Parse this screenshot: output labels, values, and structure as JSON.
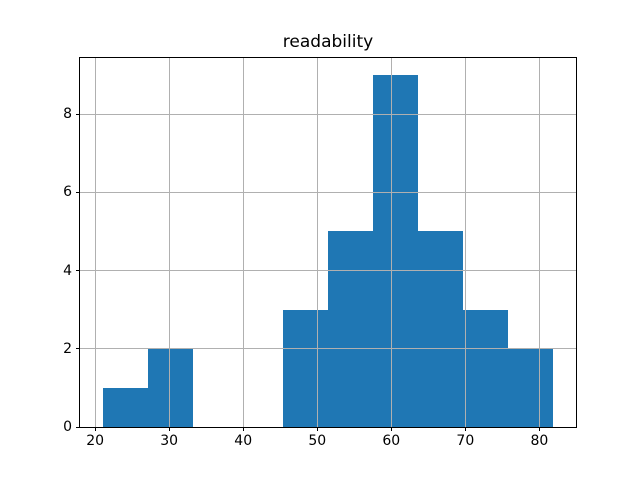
{
  "title": "readability",
  "colors": {
    "bar": "#1f77b4",
    "grid": "#b0b0b0",
    "spine": "#000000",
    "background": "#ffffff",
    "text": "#000000"
  },
  "chart_data": {
    "type": "bar",
    "subtype": "histogram",
    "title": "readability",
    "xlabel": "",
    "ylabel": "",
    "bin_edges": [
      21.0,
      27.09,
      33.18,
      39.27,
      45.36,
      51.45,
      57.54,
      63.63,
      69.72,
      75.81,
      81.9
    ],
    "counts": [
      1,
      2,
      0,
      0,
      3,
      5,
      9,
      5,
      3,
      2
    ],
    "xticks": [
      20,
      30,
      40,
      50,
      60,
      70,
      80
    ],
    "yticks": [
      0,
      2,
      4,
      6,
      8
    ],
    "xlim": [
      17.955,
      84.945
    ],
    "ylim": [
      0,
      9.45
    ],
    "grid": true,
    "grid_above_bars": true,
    "legend": false
  }
}
